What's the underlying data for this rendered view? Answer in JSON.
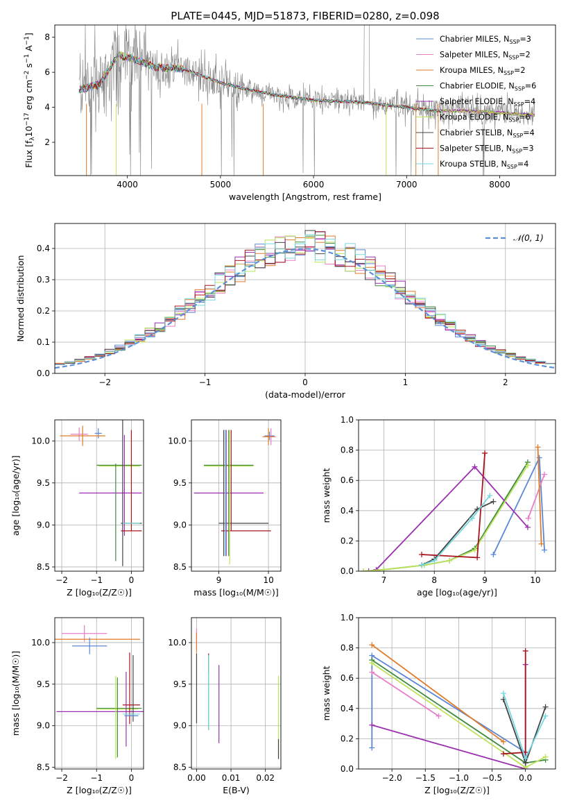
{
  "page_title": "PLATE=0445, MJD=51873, FIBERID=0280, z=0.098",
  "colors": {
    "c_m": "#5b86d6",
    "s_m": "#e77ec8",
    "k_m": "#e07b27",
    "c_e": "#3f8a3f",
    "s_e": "#9a2fb0",
    "k_e": "#bde35a",
    "c_s": "#444444",
    "s_s": "#a8141e",
    "k_s": "#74d7de",
    "data": "#808080",
    "normal": "#5b8fd8"
  },
  "legend": [
    {
      "key": "c_m",
      "label": "Chabrier MILES, N",
      "sub": "SSP",
      "val": "=3"
    },
    {
      "key": "s_m",
      "label": "Salpeter MILES, N",
      "sub": "SSP",
      "val": "=2"
    },
    {
      "key": "k_m",
      "label": "Kroupa MILES, N",
      "sub": "SSP",
      "val": "=2"
    },
    {
      "key": "c_e",
      "label": "Chabrier ELODIE, N",
      "sub": "SSP",
      "val": "=6"
    },
    {
      "key": "s_e",
      "label": "Salpeter ELODIE, N",
      "sub": "SSP",
      "val": "=4"
    },
    {
      "key": "k_e",
      "label": "Kroupa ELODIE, N",
      "sub": "SSP",
      "val": "=6"
    },
    {
      "key": "c_s",
      "label": "Chabrier STELIB, N",
      "sub": "SSP",
      "val": "=4"
    },
    {
      "key": "s_s",
      "label": "Salpeter STELIB, N",
      "sub": "SSP",
      "val": "=3"
    },
    {
      "key": "k_s",
      "label": "Kroupa STELIB, N",
      "sub": "SSP",
      "val": "=4"
    }
  ],
  "chart_data": [
    {
      "id": "spectrum",
      "type": "line",
      "title": "PLATE=0445, MJD=51873, FIBERID=0280, z=0.098",
      "xlabel": "wavelength [Angstrom, rest frame]",
      "ylabel": "Flux [f_λ 10^-17 erg cm^-2 s^-1 A^-1]",
      "xlim": [
        3220,
        8600
      ],
      "ylim": [
        0.1,
        8.7
      ],
      "xticks": [
        4000,
        5000,
        6000,
        7000,
        8000
      ],
      "yticks": [
        2,
        4,
        6,
        8
      ],
      "continuum": [
        [
          3480,
          5.0
        ],
        [
          3700,
          5.3
        ],
        [
          3900,
          7.0
        ],
        [
          4100,
          6.7
        ],
        [
          4300,
          6.3
        ],
        [
          4600,
          6.2
        ],
        [
          4800,
          5.8
        ],
        [
          5000,
          5.4
        ],
        [
          5300,
          5.0
        ],
        [
          5600,
          4.7
        ],
        [
          6000,
          4.4
        ],
        [
          6500,
          4.3
        ],
        [
          7000,
          4.0
        ],
        [
          7300,
          3.8
        ],
        [
          7600,
          3.8
        ],
        [
          8000,
          3.7
        ],
        [
          8380,
          3.55
        ]
      ],
      "grid": false
    },
    {
      "id": "residual_histogram",
      "type": "bar",
      "xlabel": "(data-model)/error",
      "ylabel": "Normed distribution",
      "xlim": [
        -2.5,
        2.5
      ],
      "ylim": [
        0,
        0.48
      ],
      "xticks": [
        -2,
        -1,
        0,
        1,
        2
      ],
      "yticks": [
        0.0,
        0.1,
        0.2,
        0.3,
        0.4
      ],
      "bin_width": 0.1,
      "legend": "𝒩(0, 1)",
      "grid": true
    },
    {
      "id": "age_vs_metallicity",
      "type": "scatter",
      "xlabel": "Z [log₁₀(Z/Z☉)]",
      "ylabel": "age  [log₁₀(age/yr)]",
      "xlim": [
        -2.2,
        0.35
      ],
      "ylim": [
        8.45,
        10.25
      ],
      "xticks": [
        -2,
        -1,
        0
      ],
      "yticks": [
        8.5,
        9.0,
        9.5,
        10.0
      ],
      "points": [
        {
          "key": "c_m",
          "x": -0.95,
          "y": 10.09,
          "xerr": 0.1,
          "yerr": 0.06
        },
        {
          "key": "s_m",
          "x": -1.5,
          "y": 10.08,
          "xerr": 0.25,
          "yerr": 0.08
        },
        {
          "key": "k_m",
          "x": -1.4,
          "y": 10.06,
          "xerr": 0.65,
          "yerr": 0.12
        },
        {
          "key": "c_e",
          "x": -0.35,
          "y": 9.71,
          "xerr": 0.65,
          "yerr": 0.0
        },
        {
          "key": "s_e",
          "x": -0.6,
          "y": 9.38,
          "xerr": 0.9,
          "yerr": 0.0
        },
        {
          "key": "k_e",
          "x": -0.35,
          "y": 9.7,
          "xerr": 0.6,
          "yerr": 0.0
        },
        {
          "key": "c_s",
          "x": -0.25,
          "y": 9.56,
          "xerr": 0.0,
          "yerr": 1.05
        },
        {
          "key": "c_s",
          "x": 0.0,
          "y": 9.02,
          "xerr": 0.3,
          "yerr": 0.0
        },
        {
          "key": "s_e",
          "x": -0.2,
          "y": 9.47,
          "xerr": 0.0,
          "yerr": 0.6
        },
        {
          "key": "s_s",
          "x": 0.0,
          "y": 9.53,
          "xerr": 0.0,
          "yerr": 0.6
        },
        {
          "key": "s_s",
          "x": 0.0,
          "y": 8.93,
          "xerr": 0.3,
          "yerr": 0.0
        },
        {
          "key": "k_s",
          "x": 0.0,
          "y": 9.02,
          "xerr": 0.25,
          "yerr": 0.0
        },
        {
          "key": "c_e",
          "x": -0.45,
          "y": 9.15,
          "xerr": 0.0,
          "yerr": 0.58
        }
      ],
      "grid": true
    },
    {
      "id": "age_vs_mass",
      "type": "scatter",
      "xlabel": "mass [log₁₀(M/M☉)]",
      "ylabel": "",
      "xlim": [
        8.45,
        10.25
      ],
      "ylim": [
        8.45,
        10.25
      ],
      "xticks": [
        9,
        10
      ],
      "yticks": [
        8.5,
        9.0,
        9.5,
        10.0
      ],
      "points": [
        {
          "key": "c_m",
          "x": 10.02,
          "y": 10.06,
          "xerr": 0.1,
          "yerr": 0.05
        },
        {
          "key": "s_m",
          "x": 10.05,
          "y": 10.05,
          "xerr": 0.1,
          "yerr": 0.1
        },
        {
          "key": "k_m",
          "x": 10.0,
          "y": 10.05,
          "xerr": 0.12,
          "yerr": 0.1
        },
        {
          "key": "c_e",
          "x": 9.2,
          "y": 9.71,
          "xerr": 0.5,
          "yerr": 0.0
        },
        {
          "key": "k_e",
          "x": 9.2,
          "y": 9.7,
          "xerr": 0.5,
          "yerr": 0.0
        },
        {
          "key": "s_e",
          "x": 9.2,
          "y": 9.38,
          "xerr": 0.7,
          "yerr": 0.0
        },
        {
          "key": "c_s",
          "x": 9.5,
          "y": 9.02,
          "xerr": 0.5,
          "yerr": 0.0
        },
        {
          "key": "s_s",
          "x": 9.55,
          "y": 8.93,
          "xerr": 0.5,
          "yerr": 0.0
        },
        {
          "key": "c_s",
          "x": 9.1,
          "y": 9.38,
          "xerr": 0.0,
          "yerr": 0.75
        },
        {
          "key": "k_s",
          "x": 9.13,
          "y": 9.38,
          "xerr": 0.0,
          "yerr": 0.75
        },
        {
          "key": "s_e",
          "x": 9.15,
          "y": 9.38,
          "xerr": 0.0,
          "yerr": 0.75
        },
        {
          "key": "c_e",
          "x": 9.2,
          "y": 9.38,
          "xerr": 0.0,
          "yerr": 0.75
        },
        {
          "key": "k_e",
          "x": 9.22,
          "y": 9.33,
          "xerr": 0.0,
          "yerr": 0.8
        },
        {
          "key": "s_s",
          "x": 9.25,
          "y": 9.53,
          "xerr": 0.0,
          "yerr": 0.6
        }
      ],
      "grid": true
    },
    {
      "id": "mass_weight_vs_age",
      "type": "line",
      "xlabel": "age  [log₁₀(age/yr)]",
      "ylabel": "mass weight",
      "xlim": [
        6.5,
        10.4
      ],
      "ylim": [
        0,
        1.0
      ],
      "xticks": [
        7,
        8,
        9,
        10
      ],
      "yticks": [
        0.0,
        0.2,
        0.4,
        0.6,
        0.8,
        1.0
      ],
      "series": [
        {
          "key": "c_m",
          "points": [
            [
              9.17,
              0.11
            ],
            [
              10.08,
              0.75
            ],
            [
              10.18,
              0.14
            ]
          ]
        },
        {
          "key": "s_m",
          "points": [
            [
              9.86,
              0.35
            ],
            [
              10.18,
              0.64
            ]
          ]
        },
        {
          "key": "k_m",
          "points": [
            [
              10.05,
              0.82
            ],
            [
              10.12,
              0.18
            ]
          ]
        },
        {
          "key": "c_e",
          "points": [
            [
              6.6,
              0.0
            ],
            [
              7.0,
              0.01
            ],
            [
              7.8,
              0.04
            ],
            [
              8.3,
              0.07
            ],
            [
              8.8,
              0.15
            ],
            [
              9.85,
              0.72
            ]
          ]
        },
        {
          "key": "s_e",
          "points": [
            [
              6.7,
              0.0
            ],
            [
              6.85,
              0.01
            ],
            [
              8.8,
              0.69
            ],
            [
              9.85,
              0.29
            ]
          ]
        },
        {
          "key": "k_e",
          "points": [
            [
              6.6,
              0.0
            ],
            [
              7.0,
              0.01
            ],
            [
              7.8,
              0.04
            ],
            [
              8.3,
              0.07
            ],
            [
              8.8,
              0.14
            ],
            [
              9.85,
              0.7
            ]
          ]
        },
        {
          "key": "c_s",
          "points": [
            [
              7.75,
              0.04
            ],
            [
              8.0,
              0.08
            ],
            [
              8.85,
              0.41
            ],
            [
              9.17,
              0.46
            ]
          ]
        },
        {
          "key": "s_s",
          "points": [
            [
              7.75,
              0.11
            ],
            [
              8.85,
              0.09
            ],
            [
              9.0,
              0.78
            ]
          ]
        },
        {
          "key": "k_s",
          "points": [
            [
              7.75,
              0.04
            ],
            [
              8.0,
              0.07
            ],
            [
              8.75,
              0.35
            ],
            [
              9.1,
              0.5
            ]
          ]
        }
      ],
      "grid": true
    },
    {
      "id": "mass_vs_metallicity",
      "type": "scatter",
      "xlabel": "Z [log₁₀(Z/Z☉)]",
      "ylabel": "mass [log₁₀(M/M☉)]",
      "xlim": [
        -2.2,
        0.35
      ],
      "ylim": [
        8.48,
        10.3
      ],
      "xticks": [
        -2,
        -1,
        0
      ],
      "yticks": [
        8.5,
        9.0,
        9.5,
        10.0
      ],
      "points": [
        {
          "key": "s_m",
          "x": -1.35,
          "y": 10.11,
          "xerr": 0.65,
          "yerr": 0.1
        },
        {
          "key": "k_m",
          "x": -1.0,
          "y": 10.04,
          "xerr": 1.25,
          "yerr": 0.0
        },
        {
          "key": "c_m",
          "x": -1.2,
          "y": 9.96,
          "xerr": 0.5,
          "yerr": 0.1
        },
        {
          "key": "c_e",
          "x": -0.35,
          "y": 9.21,
          "xerr": 0.65,
          "yerr": 0.0
        },
        {
          "key": "k_e",
          "x": -0.4,
          "y": 9.2,
          "xerr": 0.6,
          "yerr": 0.0
        },
        {
          "key": "s_e",
          "x": -0.85,
          "y": 9.17,
          "xerr": 1.3,
          "yerr": 0.0
        },
        {
          "key": "c_e",
          "x": -0.4,
          "y": 9.1,
          "xerr": 0.0,
          "yerr": 0.48
        },
        {
          "key": "k_e",
          "x": -0.45,
          "y": 9.1,
          "xerr": 0.0,
          "yerr": 0.5
        },
        {
          "key": "s_e",
          "x": -0.15,
          "y": 9.2,
          "xerr": 0.0,
          "yerr": 0.45
        },
        {
          "key": "s_s",
          "x": -0.05,
          "y": 9.45,
          "xerr": 0.0,
          "yerr": 0.43
        },
        {
          "key": "s_s",
          "x": 0.0,
          "y": 9.25,
          "xerr": 0.25,
          "yerr": 0.0
        },
        {
          "key": "c_s",
          "x": 0.05,
          "y": 9.45,
          "xerr": 0.0,
          "yerr": 0.4
        },
        {
          "key": "k_s",
          "x": 0.0,
          "y": 9.14,
          "xerr": 0.25,
          "yerr": 0.0
        },
        {
          "key": "c_m",
          "x": 0.0,
          "y": 9.12,
          "xerr": 0.2,
          "yerr": 0.0
        }
      ],
      "grid": true
    },
    {
      "id": "mass_vs_extinction",
      "type": "scatter",
      "xlabel": "E(B-V)",
      "ylabel": "",
      "xlim": [
        -0.0015,
        0.0245
      ],
      "ylim": [
        8.48,
        10.3
      ],
      "xticks": [
        0.0,
        0.01,
        0.02
      ],
      "yticks": [
        8.5,
        9.0,
        9.5,
        10.0
      ],
      "points": [
        {
          "key": "s_m",
          "x": 0.0,
          "y": 10.05,
          "xerr": 0.0,
          "yerr": 0.12
        },
        {
          "key": "k_m",
          "x": 0.0,
          "y": 10.0,
          "xerr": 0.0,
          "yerr": 0.12
        },
        {
          "key": "c_s",
          "x": 0.0,
          "y": 9.45,
          "xerr": 0.0,
          "yerr": 0.42
        },
        {
          "key": "s_s",
          "x": 0.0035,
          "y": 9.75,
          "xerr": 0.0,
          "yerr": 0.12
        },
        {
          "key": "c_e",
          "x": 0.0035,
          "y": 9.4,
          "xerr": 0.0,
          "yerr": 0.45
        },
        {
          "key": "k_s",
          "x": 0.0035,
          "y": 9.4,
          "xerr": 0.0,
          "yerr": 0.45
        },
        {
          "key": "s_e",
          "x": 0.0065,
          "y": 9.26,
          "xerr": 0.0,
          "yerr": 0.47
        },
        {
          "key": "k_e",
          "x": 0.0238,
          "y": 9.1,
          "xerr": 0.0,
          "yerr": 0.5
        },
        {
          "key": "c_s",
          "x": 0.0238,
          "y": 8.72,
          "xerr": 0.0,
          "yerr": 0.12
        }
      ],
      "grid": true
    },
    {
      "id": "mass_weight_vs_metallicity",
      "type": "line",
      "xlabel": "Z [log₁₀(Z/Z☉)]",
      "ylabel": "mass weight",
      "xlim": [
        -2.5,
        0.45
      ],
      "ylim": [
        0,
        1.0
      ],
      "xticks": [
        -2.0,
        -1.5,
        -1.0,
        -0.5,
        0.0
      ],
      "yticks": [
        0.0,
        0.2,
        0.4,
        0.6,
        0.8,
        1.0
      ],
      "series": [
        {
          "key": "c_m",
          "points": [
            [
              -2.3,
              0.14
            ],
            [
              -2.3,
              0.75
            ],
            [
              0.0,
              0.11
            ]
          ]
        },
        {
          "key": "s_m",
          "points": [
            [
              -2.3,
              0.64
            ],
            [
              -1.3,
              0.35
            ]
          ]
        },
        {
          "key": "k_m",
          "points": [
            [
              -2.3,
              0.82
            ],
            [
              -0.33,
              0.18
            ]
          ]
        },
        {
          "key": "c_e",
          "points": [
            [
              -2.3,
              0.72
            ],
            [
              0.0,
              0.04
            ],
            [
              0.3,
              0.06
            ]
          ]
        },
        {
          "key": "s_e",
          "points": [
            [
              -2.3,
              0.29
            ],
            [
              0.0,
              0.0
            ],
            [
              0.0,
              0.69
            ]
          ]
        },
        {
          "key": "k_e",
          "points": [
            [
              -2.3,
              0.7
            ],
            [
              0.0,
              0.01
            ],
            [
              0.3,
              0.08
            ]
          ]
        },
        {
          "key": "c_s",
          "points": [
            [
              -0.33,
              0.46
            ],
            [
              0.0,
              0.04
            ],
            [
              0.3,
              0.41
            ]
          ]
        },
        {
          "key": "s_s",
          "points": [
            [
              -0.33,
              0.1
            ],
            [
              0.0,
              0.11
            ],
            [
              0.0,
              0.78
            ]
          ]
        },
        {
          "key": "k_s",
          "points": [
            [
              -0.33,
              0.5
            ],
            [
              0.0,
              0.07
            ],
            [
              0.3,
              0.35
            ]
          ]
        }
      ],
      "grid": true
    }
  ]
}
